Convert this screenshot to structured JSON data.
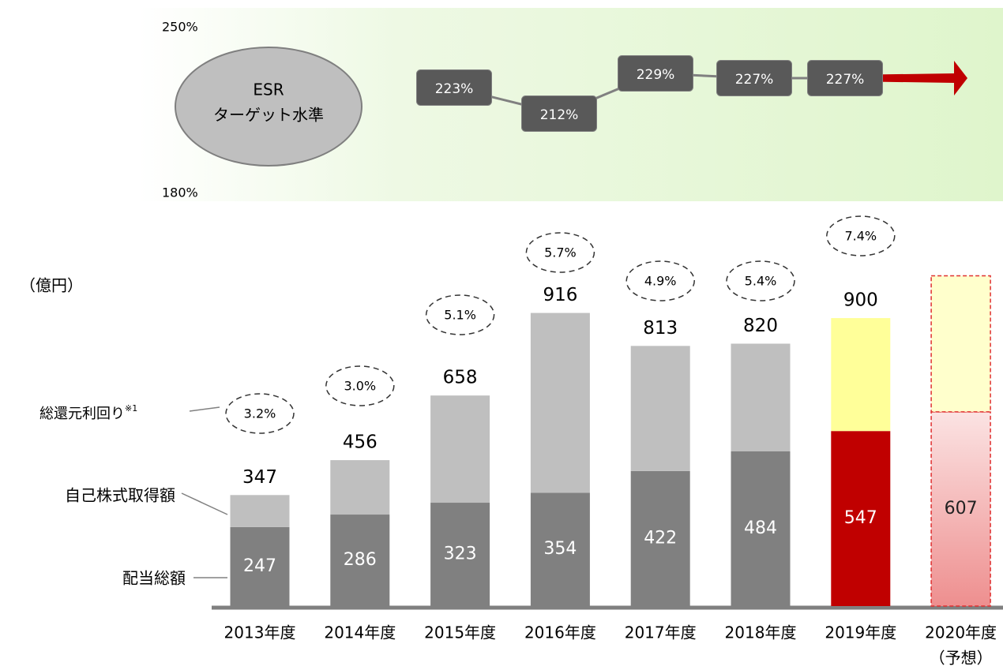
{
  "chart_data": {
    "type": "stacked-bar",
    "unit_label": "（億円）",
    "categories": [
      "2013年度",
      "2014年度",
      "2015年度",
      "2016年度",
      "2017年度",
      "2018年度",
      "2019年度",
      "2020年度"
    ],
    "category_notes": [
      null,
      null,
      null,
      null,
      null,
      null,
      null,
      "（予想）"
    ],
    "series": [
      {
        "name": "配当総額",
        "colors": [
          "#808080",
          "#808080",
          "#808080",
          "#808080",
          "#808080",
          "#808080",
          "#c00000",
          "#f4b8b8"
        ],
        "values": [
          247,
          286,
          323,
          354,
          422,
          484,
          547,
          607
        ]
      },
      {
        "name": "自己株式取得額",
        "colors": [
          "#bfbfbf",
          "#bfbfbf",
          "#bfbfbf",
          "#bfbfbf",
          "#bfbfbf",
          "#bfbfbf",
          "#ffff99",
          "#ffffcc"
        ],
        "values": [
          100,
          170,
          335,
          562,
          391,
          336,
          353,
          425
        ]
      }
    ],
    "totals": [
      347,
      456,
      658,
      916,
      813,
      820,
      900,
      null
    ],
    "yield_name": "総還元利回り",
    "yield_note": "※1",
    "yields": [
      3.2,
      3.0,
      5.1,
      5.7,
      4.9,
      5.4,
      7.4,
      null
    ],
    "yield_labels": [
      "3.2%",
      "3.0%",
      "5.1%",
      "5.7%",
      "4.9%",
      "5.4%",
      "7.4%",
      null
    ],
    "esr": {
      "title_lines": [
        "ESR",
        "ターゲット水準"
      ],
      "values": [
        223,
        212,
        229,
        227,
        227
      ],
      "value_labels": [
        "223%",
        "212%",
        "229%",
        "227%",
        "227%"
      ],
      "ylim": [
        180,
        250
      ],
      "yticks": [
        {
          "value": 250,
          "label": "250%"
        },
        {
          "value": 180,
          "label": "180%"
        }
      ]
    }
  }
}
